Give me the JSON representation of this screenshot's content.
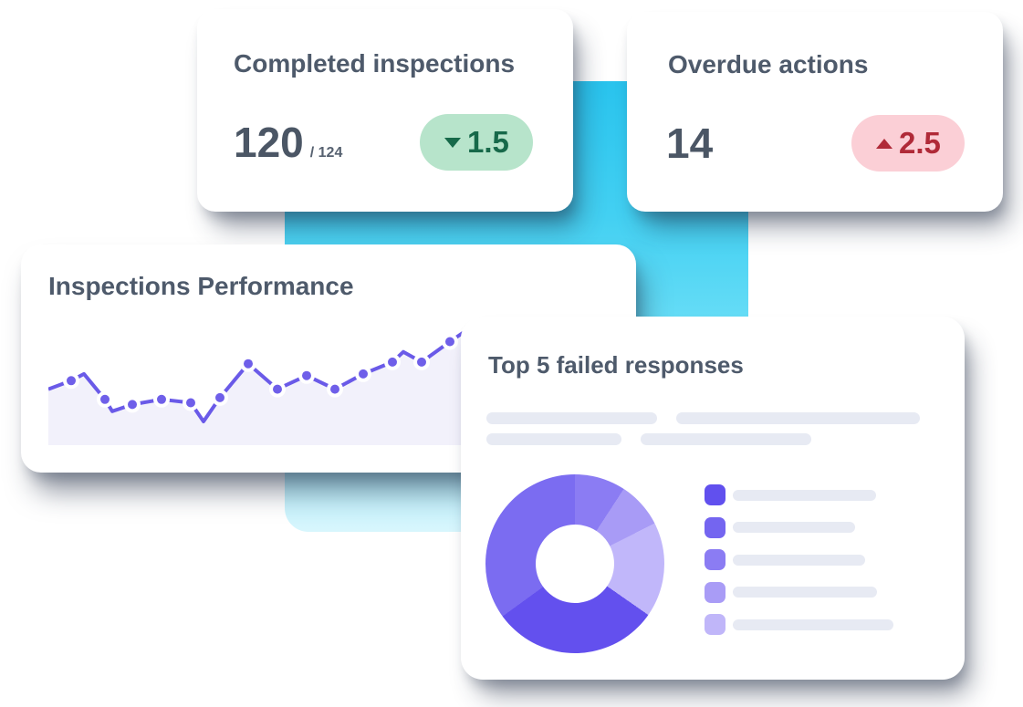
{
  "page": {
    "background": "#ffffff",
    "accent_color_top": "#29c3ed",
    "accent_color_bottom": "#d8f6fd"
  },
  "cards": {
    "completed": {
      "title": "Completed inspections",
      "value": "120",
      "total_suffix": "/ 124",
      "delta": "1.5",
      "delta_direction": "down",
      "delta_bg": "#b7e4cb",
      "delta_text_color": "#17694a"
    },
    "overdue": {
      "title": "Overdue actions",
      "value": "14",
      "delta": "2.5",
      "delta_direction": "up",
      "delta_bg": "#fbcfd6",
      "delta_text_color": "#b02a38"
    },
    "performance": {
      "title": "Inspections Performance"
    },
    "top5": {
      "title": "Top 5 failed responses",
      "placeholder_rows": [
        [
          189,
          270
        ],
        [
          148,
          187
        ]
      ],
      "legend_bar_widths": [
        157,
        134,
        145,
        158,
        176
      ]
    }
  },
  "chart_data": [
    {
      "type": "line",
      "title": "Inspections Performance",
      "line_color": "#6a5ae8",
      "dot_color": "#6f5fe9",
      "area_color": "#f2f1fb",
      "ylim": [
        0,
        100
      ],
      "points": [
        {
          "x": 0,
          "value": 33,
          "dot": false
        },
        {
          "x": 25,
          "value": 38,
          "dot": true
        },
        {
          "x": 39,
          "value": 42,
          "dot": false
        },
        {
          "x": 62,
          "value": 27,
          "dot": true
        },
        {
          "x": 70,
          "value": 20,
          "dot": false
        },
        {
          "x": 92,
          "value": 24,
          "dot": true
        },
        {
          "x": 124,
          "value": 27,
          "dot": true
        },
        {
          "x": 156,
          "value": 25,
          "dot": true
        },
        {
          "x": 170,
          "value": 14,
          "dot": false
        },
        {
          "x": 188,
          "value": 28,
          "dot": true
        },
        {
          "x": 219,
          "value": 48,
          "dot": true
        },
        {
          "x": 251,
          "value": 33,
          "dot": true
        },
        {
          "x": 283,
          "value": 41,
          "dot": true
        },
        {
          "x": 314,
          "value": 33,
          "dot": true
        },
        {
          "x": 345,
          "value": 42,
          "dot": true
        },
        {
          "x": 377,
          "value": 49,
          "dot": true
        },
        {
          "x": 389,
          "value": 55,
          "dot": false
        },
        {
          "x": 409,
          "value": 49,
          "dot": true
        },
        {
          "x": 440,
          "value": 61,
          "dot": true
        },
        {
          "x": 470,
          "value": 72,
          "dot": false
        }
      ]
    },
    {
      "type": "pie",
      "title": "Top 5 failed responses",
      "donut": true,
      "segments": [
        {
          "pct": 9.2,
          "color": "#8b7cf3"
        },
        {
          "pct": 8.3,
          "color": "#a89bf6"
        },
        {
          "pct": 17.2,
          "color": "#c1b7fa"
        },
        {
          "pct": 30.3,
          "color": "#6350ee"
        },
        {
          "pct": 35.0,
          "color": "#7b6cf1"
        }
      ],
      "legend_colors": [
        "#6150ee",
        "#7465f0",
        "#8b7cf3",
        "#a99cf6",
        "#c0b6f9"
      ]
    }
  ]
}
